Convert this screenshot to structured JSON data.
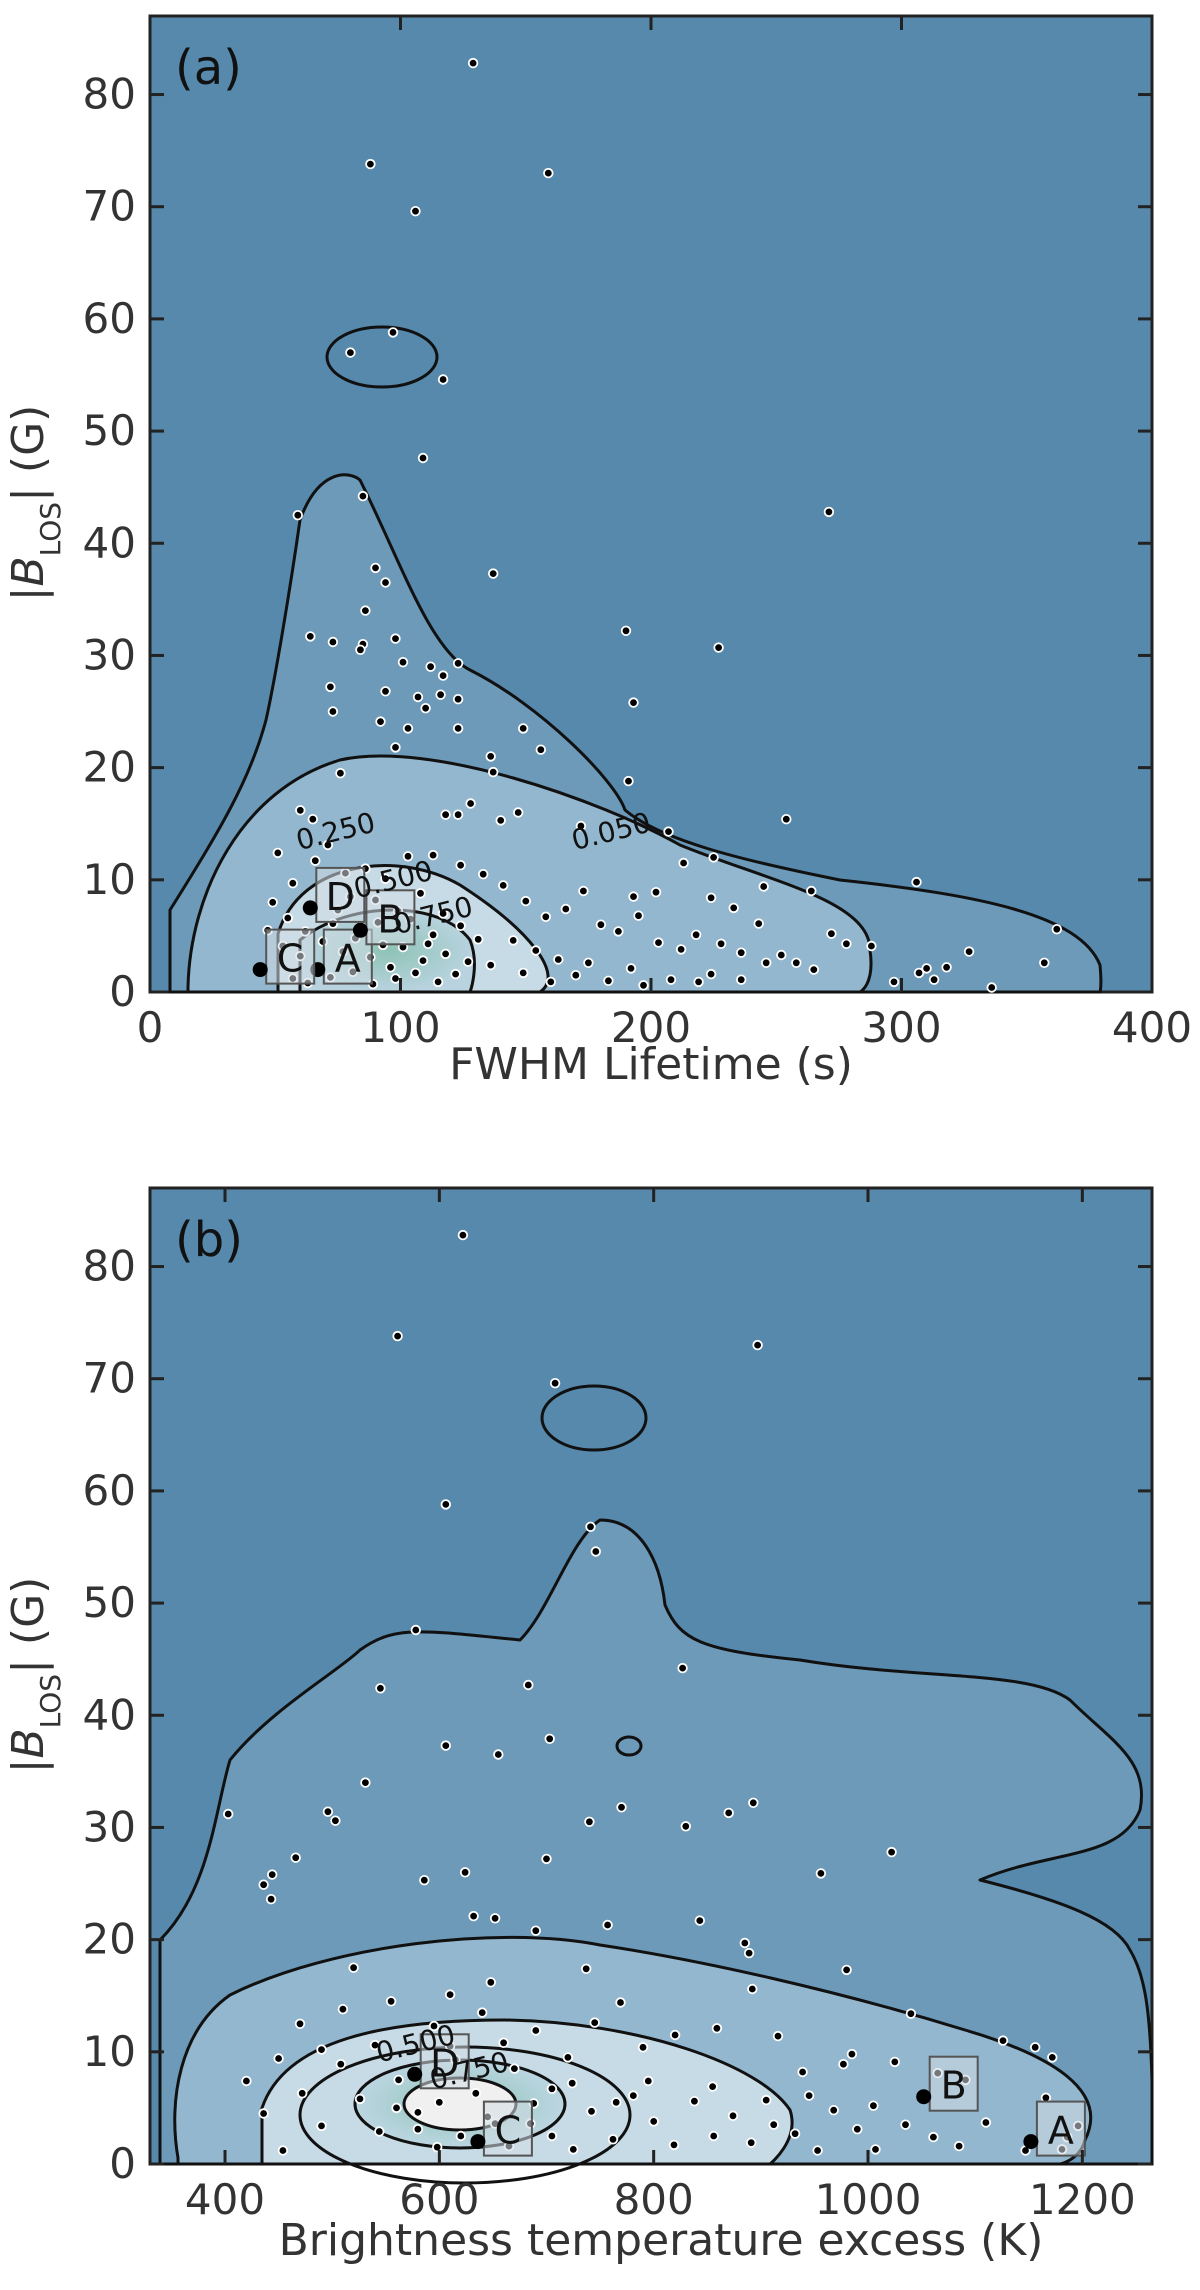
{
  "chart_data": [
    {
      "type": "scatter",
      "panel_label": "(a)",
      "xlabel": "FWHM Lifetime (s)",
      "ylabel_main": "|B",
      "ylabel_sub": "LOS",
      "ylabel_tail": "| (G)",
      "xlim": [
        0,
        400
      ],
      "ylim": [
        0,
        87
      ],
      "xticks": [
        0,
        100,
        200,
        300,
        400
      ],
      "yticks": [
        0,
        10,
        20,
        30,
        40,
        50,
        60,
        70,
        80
      ],
      "contour_labels": [
        {
          "text": "0.250",
          "x": 75,
          "y": 13.5
        },
        {
          "text": "0.500",
          "x": 98,
          "y": 9.2
        },
        {
          "text": "0.750",
          "x": 114,
          "y": 6.0
        },
        {
          "text": "0.050",
          "x": 185,
          "y": 13.5
        }
      ],
      "highlighted_points": [
        {
          "label": "A",
          "x": 67,
          "y": 2
        },
        {
          "label": "B",
          "x": 84,
          "y": 5.5
        },
        {
          "label": "C",
          "x": 44,
          "y": 2
        },
        {
          "label": "D",
          "x": 64,
          "y": 7.5
        }
      ],
      "points": [
        [
          129,
          82.8
        ],
        [
          88,
          73.8
        ],
        [
          159,
          73
        ],
        [
          106,
          69.6
        ],
        [
          97,
          58.8
        ],
        [
          80,
          57
        ],
        [
          117,
          54.6
        ],
        [
          109,
          47.6
        ],
        [
          271,
          42.8
        ],
        [
          59,
          42.5
        ],
        [
          85,
          44.2
        ],
        [
          137,
          37.3
        ],
        [
          90,
          37.8
        ],
        [
          94,
          36.5
        ],
        [
          86,
          34
        ],
        [
          190,
          32.2
        ],
        [
          227,
          30.7
        ],
        [
          64,
          31.7
        ],
        [
          73,
          31.2
        ],
        [
          98,
          31.5
        ],
        [
          85,
          31
        ],
        [
          84,
          30.5
        ],
        [
          101,
          29.4
        ],
        [
          112,
          29
        ],
        [
          123,
          29.3
        ],
        [
          117,
          28.2
        ],
        [
          72,
          27.2
        ],
        [
          94,
          26.8
        ],
        [
          107,
          26.3
        ],
        [
          116,
          26.5
        ],
        [
          123,
          26.1
        ],
        [
          110,
          25.3
        ],
        [
          73,
          25
        ],
        [
          193,
          25.8
        ],
        [
          92,
          24.1
        ],
        [
          103,
          23.5
        ],
        [
          149,
          23.5
        ],
        [
          123,
          23.5
        ],
        [
          98,
          21.8
        ],
        [
          156,
          21.6
        ],
        [
          136,
          21
        ],
        [
          76,
          19.5
        ],
        [
          191,
          18.8
        ],
        [
          137,
          19.6
        ],
        [
          147,
          16
        ],
        [
          118,
          15.8
        ],
        [
          123,
          15.8
        ],
        [
          254,
          15.4
        ],
        [
          128,
          16.8
        ],
        [
          60,
          16.2
        ],
        [
          140,
          15.3
        ],
        [
          65,
          15.4
        ],
        [
          172,
          14.8
        ],
        [
          207,
          14.3
        ],
        [
          225,
          12
        ],
        [
          213,
          11.5
        ],
        [
          245,
          9.4
        ],
        [
          306,
          9.8
        ],
        [
          264,
          9
        ],
        [
          193,
          8.5
        ],
        [
          202,
          8.9
        ],
        [
          224,
          8.4
        ],
        [
          233,
          7.5
        ],
        [
          243,
          6.1
        ],
        [
          272,
          5.2
        ],
        [
          278,
          4.3
        ],
        [
          288,
          4.1
        ],
        [
          362,
          5.6
        ],
        [
          327,
          3.6
        ],
        [
          310,
          2.1
        ],
        [
          318,
          2.2
        ],
        [
          313,
          1.1
        ],
        [
          307,
          1.7
        ],
        [
          297,
          0.9
        ],
        [
          357,
          2.6
        ],
        [
          336,
          0.4
        ],
        [
          173,
          9
        ],
        [
          166,
          7.4
        ],
        [
          180,
          6
        ],
        [
          187,
          5.4
        ],
        [
          195,
          6.8
        ],
        [
          203,
          4.4
        ],
        [
          212,
          3.8
        ],
        [
          218,
          5.1
        ],
        [
          228,
          4.3
        ],
        [
          236,
          3.5
        ],
        [
          246,
          2.6
        ],
        [
          252,
          3.3
        ],
        [
          258,
          2.6
        ],
        [
          265,
          2
        ],
        [
          224,
          1.6
        ],
        [
          208,
          1.1
        ],
        [
          192,
          2.1
        ],
        [
          175,
          2.6
        ],
        [
          163,
          2.9
        ],
        [
          154,
          3.7
        ],
        [
          145,
          4.6
        ],
        [
          136,
          2.4
        ],
        [
          149,
          1.7
        ],
        [
          160,
          0.9
        ],
        [
          170,
          1.5
        ],
        [
          183,
          1
        ],
        [
          197,
          0.6
        ],
        [
          219,
          0.9
        ],
        [
          236,
          1.1
        ],
        [
          113,
          12.2
        ],
        [
          124,
          11.3
        ],
        [
          133,
          10.5
        ],
        [
          141,
          9.5
        ],
        [
          150,
          8.1
        ],
        [
          158,
          6.7
        ],
        [
          51,
          12.4
        ],
        [
          57,
          9.7
        ],
        [
          49,
          8
        ],
        [
          47,
          5.5
        ],
        [
          53,
          4.1
        ],
        [
          55,
          6.6
        ],
        [
          60,
          3.2
        ],
        [
          69,
          4.5
        ],
        [
          73,
          6.1
        ],
        [
          77,
          3.6
        ],
        [
          80,
          8.5
        ],
        [
          88,
          3.1
        ],
        [
          91,
          6.2
        ],
        [
          96,
          2.2
        ],
        [
          101,
          4
        ],
        [
          104,
          6.5
        ],
        [
          109,
          2.8
        ],
        [
          113,
          5.1
        ],
        [
          118,
          3.4
        ],
        [
          122,
          1.6
        ],
        [
          127,
          2.7
        ],
        [
          131,
          4.7
        ],
        [
          94,
          10.1
        ],
        [
          86,
          11
        ],
        [
          78,
          10.6
        ],
        [
          66,
          11.7
        ],
        [
          71,
          13.1
        ],
        [
          103,
          12.1
        ],
        [
          57,
          1.2
        ],
        [
          63,
          0.8
        ],
        [
          72,
          1.3
        ],
        [
          81,
          1.8
        ],
        [
          89,
          0.7
        ],
        [
          98,
          1.2
        ],
        [
          106,
          1.7
        ],
        [
          115,
          0.9
        ],
        [
          62,
          5.4
        ],
        [
          75,
          7.3
        ],
        [
          82,
          4.8
        ],
        [
          90,
          8.2
        ],
        [
          99,
          7.2
        ],
        [
          108,
          8.8
        ],
        [
          117,
          7
        ],
        [
          124,
          5.9
        ],
        [
          93,
          4.2
        ],
        [
          111,
          4.3
        ]
      ]
    },
    {
      "type": "scatter",
      "panel_label": "(b)",
      "xlabel": "Brightness temperature excess (K)",
      "ylabel_main": "|B",
      "ylabel_sub": "LOS",
      "ylabel_tail": "| (G)",
      "xlim": [
        330,
        1265
      ],
      "ylim": [
        0,
        87
      ],
      "xticks": [
        400,
        600,
        800,
        1000,
        1200
      ],
      "yticks": [
        0,
        10,
        20,
        30,
        40,
        50,
        60,
        70,
        80
      ],
      "contour_labels": [
        {
          "text": "0.500",
          "x": 580,
          "y": 9.9
        },
        {
          "text": "0.750",
          "x": 630,
          "y": 7.5
        }
      ],
      "highlighted_points": [
        {
          "label": "A",
          "x": 1152,
          "y": 2
        },
        {
          "label": "B",
          "x": 1052,
          "y": 6
        },
        {
          "label": "C",
          "x": 636,
          "y": 2
        },
        {
          "label": "D",
          "x": 577,
          "y": 8
        }
      ],
      "points": [
        [
          622,
          82.8
        ],
        [
          561,
          73.8
        ],
        [
          897,
          73
        ],
        [
          708,
          69.6
        ],
        [
          606,
          58.8
        ],
        [
          741,
          56.8
        ],
        [
          746,
          54.6
        ],
        [
          827,
          44.2
        ],
        [
          683,
          42.7
        ],
        [
          545,
          42.4
        ],
        [
          578,
          47.6
        ],
        [
          403,
          31.2
        ],
        [
          496,
          31.4
        ],
        [
          503,
          30.6
        ],
        [
          466,
          27.3
        ],
        [
          444,
          25.8
        ],
        [
          436,
          24.9
        ],
        [
          443,
          23.6
        ],
        [
          531,
          34
        ],
        [
          606,
          37.3
        ],
        [
          655,
          36.5
        ],
        [
          703,
          37.9
        ],
        [
          740,
          30.5
        ],
        [
          770,
          31.8
        ],
        [
          830,
          30.1
        ],
        [
          870,
          31.3
        ],
        [
          893,
          32.2
        ],
        [
          1022,
          27.8
        ],
        [
          956,
          25.9
        ],
        [
          700,
          27.2
        ],
        [
          624,
          26
        ],
        [
          586,
          25.3
        ],
        [
          843,
          21.7
        ],
        [
          885,
          19.7
        ],
        [
          889,
          18.8
        ],
        [
          980,
          17.3
        ],
        [
          892,
          15.6
        ],
        [
          652,
          21.9
        ],
        [
          632,
          22.1
        ],
        [
          690,
          20.8
        ],
        [
          757,
          21.3
        ],
        [
          520,
          17.5
        ],
        [
          610,
          15.1
        ],
        [
          648,
          16.2
        ],
        [
          737,
          17.4
        ],
        [
          769,
          14.4
        ],
        [
          820,
          11.5
        ],
        [
          859,
          12.1
        ],
        [
          916,
          11.4
        ],
        [
          939,
          8.2
        ],
        [
          977,
          8.9
        ],
        [
          1025,
          9.1
        ],
        [
          1065,
          8.1
        ],
        [
          1091,
          7.5
        ],
        [
          1126,
          11
        ],
        [
          1156,
          10.4
        ],
        [
          1172,
          9.5
        ],
        [
          1061,
          2.4
        ],
        [
          1085,
          1.6
        ],
        [
          1181,
          1.3
        ],
        [
          1186,
          2.4
        ],
        [
          1007,
          1.3
        ],
        [
          990,
          3.1
        ],
        [
          968,
          4.8
        ],
        [
          953,
          1.2
        ],
        [
          932,
          2.7
        ],
        [
          912,
          3.5
        ],
        [
          891,
          1.9
        ],
        [
          874,
          4.3
        ],
        [
          856,
          2.5
        ],
        [
          838,
          5.6
        ],
        [
          819,
          1.7
        ],
        [
          800,
          3.8
        ],
        [
          781,
          6.1
        ],
        [
          762,
          2.2
        ],
        [
          742,
          4.7
        ],
        [
          724,
          7.2
        ],
        [
          705,
          2.5
        ],
        [
          688,
          5.4
        ],
        [
          670,
          8.5
        ],
        [
          652,
          3.6
        ],
        [
          634,
          6.3
        ],
        [
          615,
          9.3
        ],
        [
          598,
          1.5
        ],
        [
          580,
          4.6
        ],
        [
          562,
          7.5
        ],
        [
          544,
          2.9
        ],
        [
          526,
          5.8
        ],
        [
          508,
          8.9
        ],
        [
          490,
          3.4
        ],
        [
          472,
          6.3
        ],
        [
          454,
          1.2
        ],
        [
          436,
          4.5
        ],
        [
          420,
          7.4
        ],
        [
          470,
          12.5
        ],
        [
          510,
          13.8
        ],
        [
          555,
          14.5
        ],
        [
          595,
          12.3
        ],
        [
          640,
          13.5
        ],
        [
          690,
          11.9
        ],
        [
          745,
          12.6
        ],
        [
          790,
          10.4
        ],
        [
          610,
          10.5
        ],
        [
          660,
          10.8
        ],
        [
          720,
          9.5
        ],
        [
          540,
          10.6
        ],
        [
          490,
          10.2
        ],
        [
          450,
          9.4
        ],
        [
          580,
          3.1
        ],
        [
          600,
          5.5
        ],
        [
          620,
          2.5
        ],
        [
          560,
          5
        ],
        [
          645,
          4.2
        ],
        [
          665,
          1.6
        ],
        [
          685,
          3.6
        ],
        [
          705,
          6.7
        ],
        [
          725,
          1.3
        ],
        [
          765,
          5.5
        ],
        [
          795,
          7.4
        ],
        [
          855,
          6.9
        ],
        [
          905,
          5.7
        ],
        [
          945,
          6.1
        ],
        [
          1005,
          5.2
        ],
        [
          1035,
          3.5
        ],
        [
          1110,
          3.7
        ],
        [
          985,
          9.8
        ],
        [
          1040,
          13.4
        ],
        [
          1196,
          3.4
        ],
        [
          1147,
          1.2
        ],
        [
          1166,
          5.9
        ]
      ]
    }
  ]
}
